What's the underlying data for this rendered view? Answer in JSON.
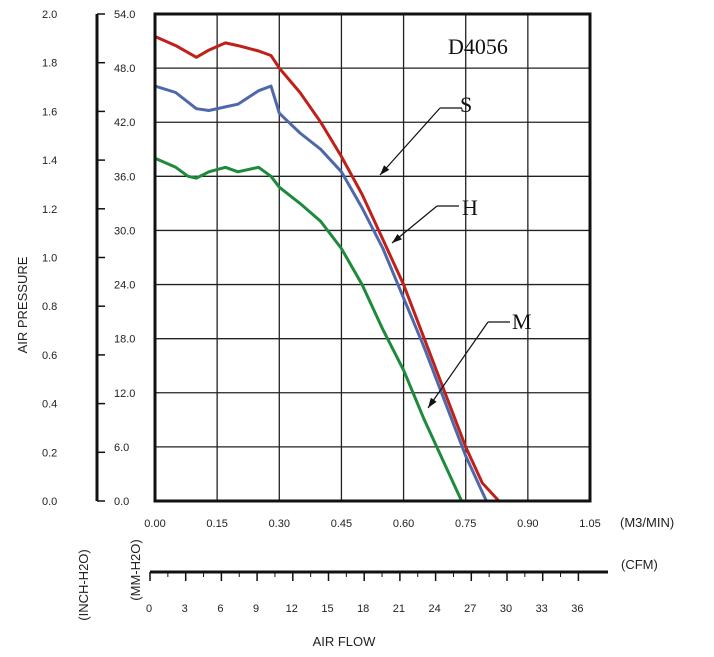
{
  "chart_data": {
    "type": "line",
    "title": "D4056",
    "xlabel": "AIR FLOW",
    "ylabel": "AIR PRESSURE",
    "x_unit_primary": "(M3/MIN)",
    "x_unit_secondary": "(CFM)",
    "y_unit_left": "(INCH-H2O)",
    "y_unit_right": "(MM-H2O)",
    "xlim": [
      0,
      1.05
    ],
    "ylim_mm": [
      0,
      54
    ],
    "ylim_inch": [
      0,
      2.0
    ],
    "x_ticks": [
      "0.00",
      "0.15",
      "0.30",
      "0.45",
      "0.60",
      "0.75",
      "0.90",
      "1.05"
    ],
    "cfm_ticks": [
      "0",
      "3",
      "6",
      "9",
      "12",
      "15",
      "18",
      "21",
      "24",
      "27",
      "30",
      "33",
      "36"
    ],
    "mm_ticks": [
      "0.0",
      "6.0",
      "12.0",
      "18.0",
      "24.0",
      "30.0",
      "36.0",
      "42.0",
      "48.0",
      "54.0"
    ],
    "inch_ticks": [
      "0.0",
      "0.2",
      "0.4",
      "0.6",
      "0.8",
      "1.0",
      "1.2",
      "1.4",
      "1.6",
      "1.8",
      "2.0"
    ],
    "grid": true,
    "series": [
      {
        "name": "S",
        "color": "#c0201a",
        "x": [
          0.0,
          0.05,
          0.1,
          0.13,
          0.17,
          0.2,
          0.25,
          0.28,
          0.3,
          0.35,
          0.4,
          0.45,
          0.5,
          0.55,
          0.6,
          0.65,
          0.7,
          0.75,
          0.79,
          0.83
        ],
        "y": [
          51.5,
          50.5,
          49.2,
          50.0,
          50.8,
          50.5,
          49.9,
          49.4,
          48.0,
          45.3,
          42.0,
          38.2,
          34.0,
          29.0,
          24.0,
          18.0,
          12.0,
          6.0,
          2.0,
          0.0
        ]
      },
      {
        "name": "H",
        "color": "#4f68ac",
        "x": [
          0.0,
          0.05,
          0.1,
          0.13,
          0.17,
          0.2,
          0.25,
          0.28,
          0.3,
          0.35,
          0.4,
          0.45,
          0.5,
          0.55,
          0.6,
          0.65,
          0.7,
          0.75,
          0.8
        ],
        "y": [
          46.0,
          45.3,
          43.5,
          43.3,
          43.7,
          44.0,
          45.5,
          46.0,
          43.0,
          40.8,
          39.0,
          36.5,
          32.5,
          28.0,
          22.5,
          17.0,
          11.0,
          5.0,
          0.0
        ]
      },
      {
        "name": "M",
        "color": "#1e8a3c",
        "x": [
          0.0,
          0.05,
          0.08,
          0.1,
          0.13,
          0.17,
          0.2,
          0.25,
          0.28,
          0.3,
          0.35,
          0.4,
          0.45,
          0.5,
          0.55,
          0.6,
          0.65,
          0.7,
          0.74
        ],
        "y": [
          38.0,
          37.0,
          36.0,
          35.8,
          36.5,
          37.0,
          36.5,
          37.0,
          36.0,
          34.8,
          33.0,
          31.0,
          28.0,
          24.0,
          19.0,
          14.5,
          9.0,
          4.0,
          0.0
        ]
      }
    ]
  }
}
